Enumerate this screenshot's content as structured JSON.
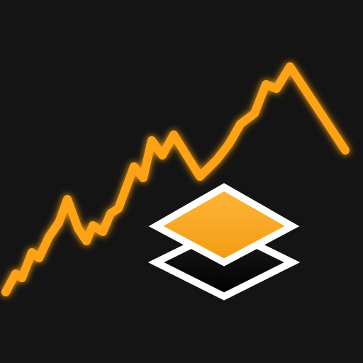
{
  "icon": {
    "name": "stacked-layers-trend-icon",
    "colors": {
      "background": "#141414",
      "accent_line": "#ffa313",
      "accent_glow": "#ff8a00",
      "top_layer_top": "#ffb63a",
      "top_layer_bottom": "#f29b12",
      "bottom_layer": "#000000",
      "outline": "#ffffff"
    }
  }
}
